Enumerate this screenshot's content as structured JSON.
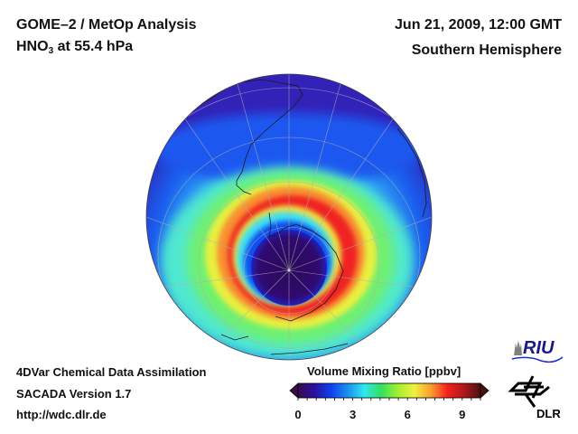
{
  "header": {
    "title_line1": "GOME–2 / MetOp Analysis",
    "species_main": "HNO",
    "species_sub": "3",
    "species_rest": " at 55.4 hPa",
    "datetime": "Jun 21, 2009, 12:00 GMT",
    "region": "Southern Hemisphere"
  },
  "footer": {
    "line1": "4DVar Chemical Data Assimilation",
    "line2": "SACADA Version 1.7",
    "line3": "http://wdc.dlr.de"
  },
  "colorbar": {
    "title": "Volume Mixing Ratio [ppbv]",
    "min": 0,
    "max": 10,
    "tick_labels": [
      "0",
      "3",
      "6",
      "9"
    ],
    "tick_values": [
      0,
      3,
      6,
      9
    ],
    "minor_tick_step": 0.5,
    "extend": "both",
    "colors": [
      "#3a0a4a",
      "#2a10a0",
      "#1040f0",
      "#1a90f0",
      "#30e8f0",
      "#30e060",
      "#a0f030",
      "#f0f040",
      "#f8a030",
      "#f82020",
      "#b01818",
      "#4a1010"
    ]
  },
  "map": {
    "projection": "orthographic",
    "hemisphere": "south",
    "features": [
      "coastlines",
      "graticule",
      "polar vortex HNO3 depletion (center ~0-1 ppbv)",
      "collar maximum ~9-10 ppbv"
    ]
  },
  "logos": {
    "riu": "RIU",
    "dlr": "DLR"
  }
}
